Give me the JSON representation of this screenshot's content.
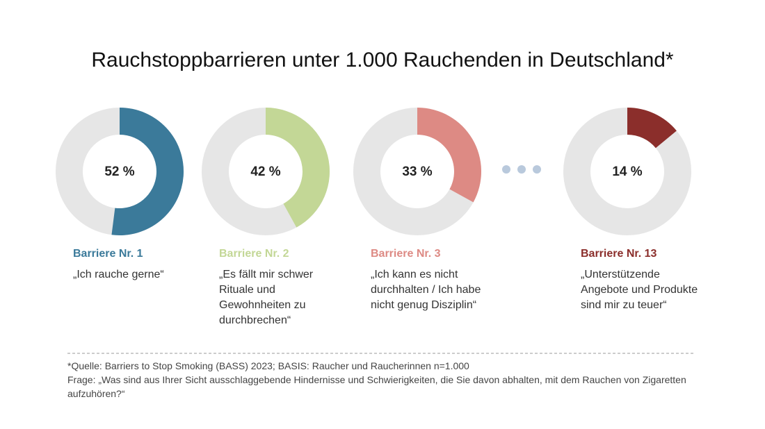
{
  "title": "Rauchstoppbarrieren unter 1.000 Rauchenden in Deutschland*",
  "chart_data": [
    {
      "type": "donut",
      "title": "Barriere Nr. 1",
      "values": [
        52
      ],
      "value_labels": [
        "52 %"
      ],
      "ylim": [
        0,
        100
      ],
      "color": "#3b7a9a",
      "annotation": "„Ich rauche gerne“"
    },
    {
      "type": "donut",
      "title": "Barriere Nr. 2",
      "values": [
        42
      ],
      "value_labels": [
        "42 %"
      ],
      "ylim": [
        0,
        100
      ],
      "color": "#c3d796",
      "annotation": "„Es fällt mir schwer Rituale und Gewohnheiten zu durchbrechen“"
    },
    {
      "type": "donut",
      "title": "Barriere Nr. 3",
      "values": [
        33
      ],
      "value_labels": [
        "33 %"
      ],
      "ylim": [
        0,
        100
      ],
      "color": "#dd8a84",
      "annotation": "„Ich kann es nicht durchhalten / Ich habe nicht genug Disziplin“"
    },
    {
      "type": "donut",
      "title": "Barriere Nr. 13",
      "values": [
        14
      ],
      "value_labels": [
        "14 %"
      ],
      "ylim": [
        0,
        100
      ],
      "color": "#8b2e2b",
      "annotation": "„Unterstützende Angebote und Produkte sind mir zu teuer“"
    }
  ],
  "footnote": {
    "source": "*Quelle: Barriers to Stop Smoking (BASS) 2023; BASIS: Raucher und Raucherinnen n=1.000",
    "question": "Frage: „Was sind aus Ihrer Sicht ausschlaggebende Hindernisse und Schwierigkeiten, die Sie davon abhalten, mit dem Rauchen von Zigaretten aufzuhören?“"
  }
}
